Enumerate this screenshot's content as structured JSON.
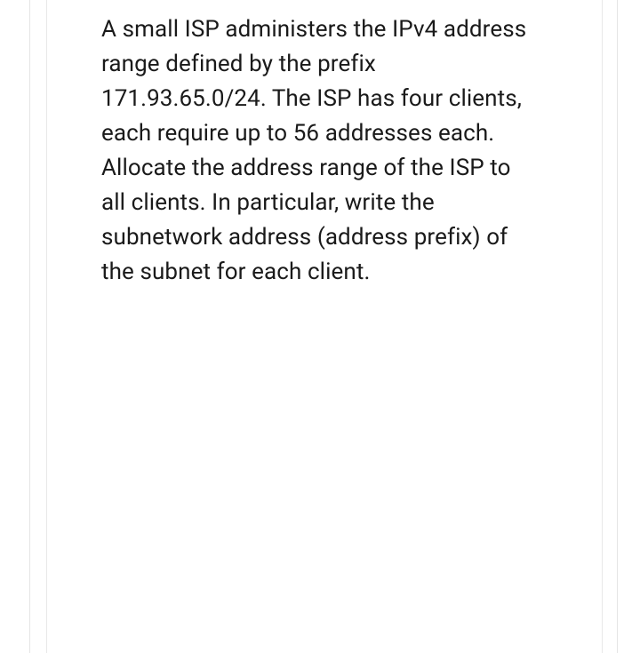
{
  "question": {
    "text": "A small ISP administers the IPv4 address range defined by the prefix 171.93.65.0/24. The ISP has four clients, each require up to 56 addresses each. Allocate the address range of the ISP to all clients. In particular, write the subnetwork address (address prefix) of the subnet for each client."
  },
  "styling": {
    "background_color": "#ffffff",
    "text_color": "#1a1a1a",
    "border_color": "#e5e5e5",
    "font_size": 26,
    "line_height": 1.5
  }
}
